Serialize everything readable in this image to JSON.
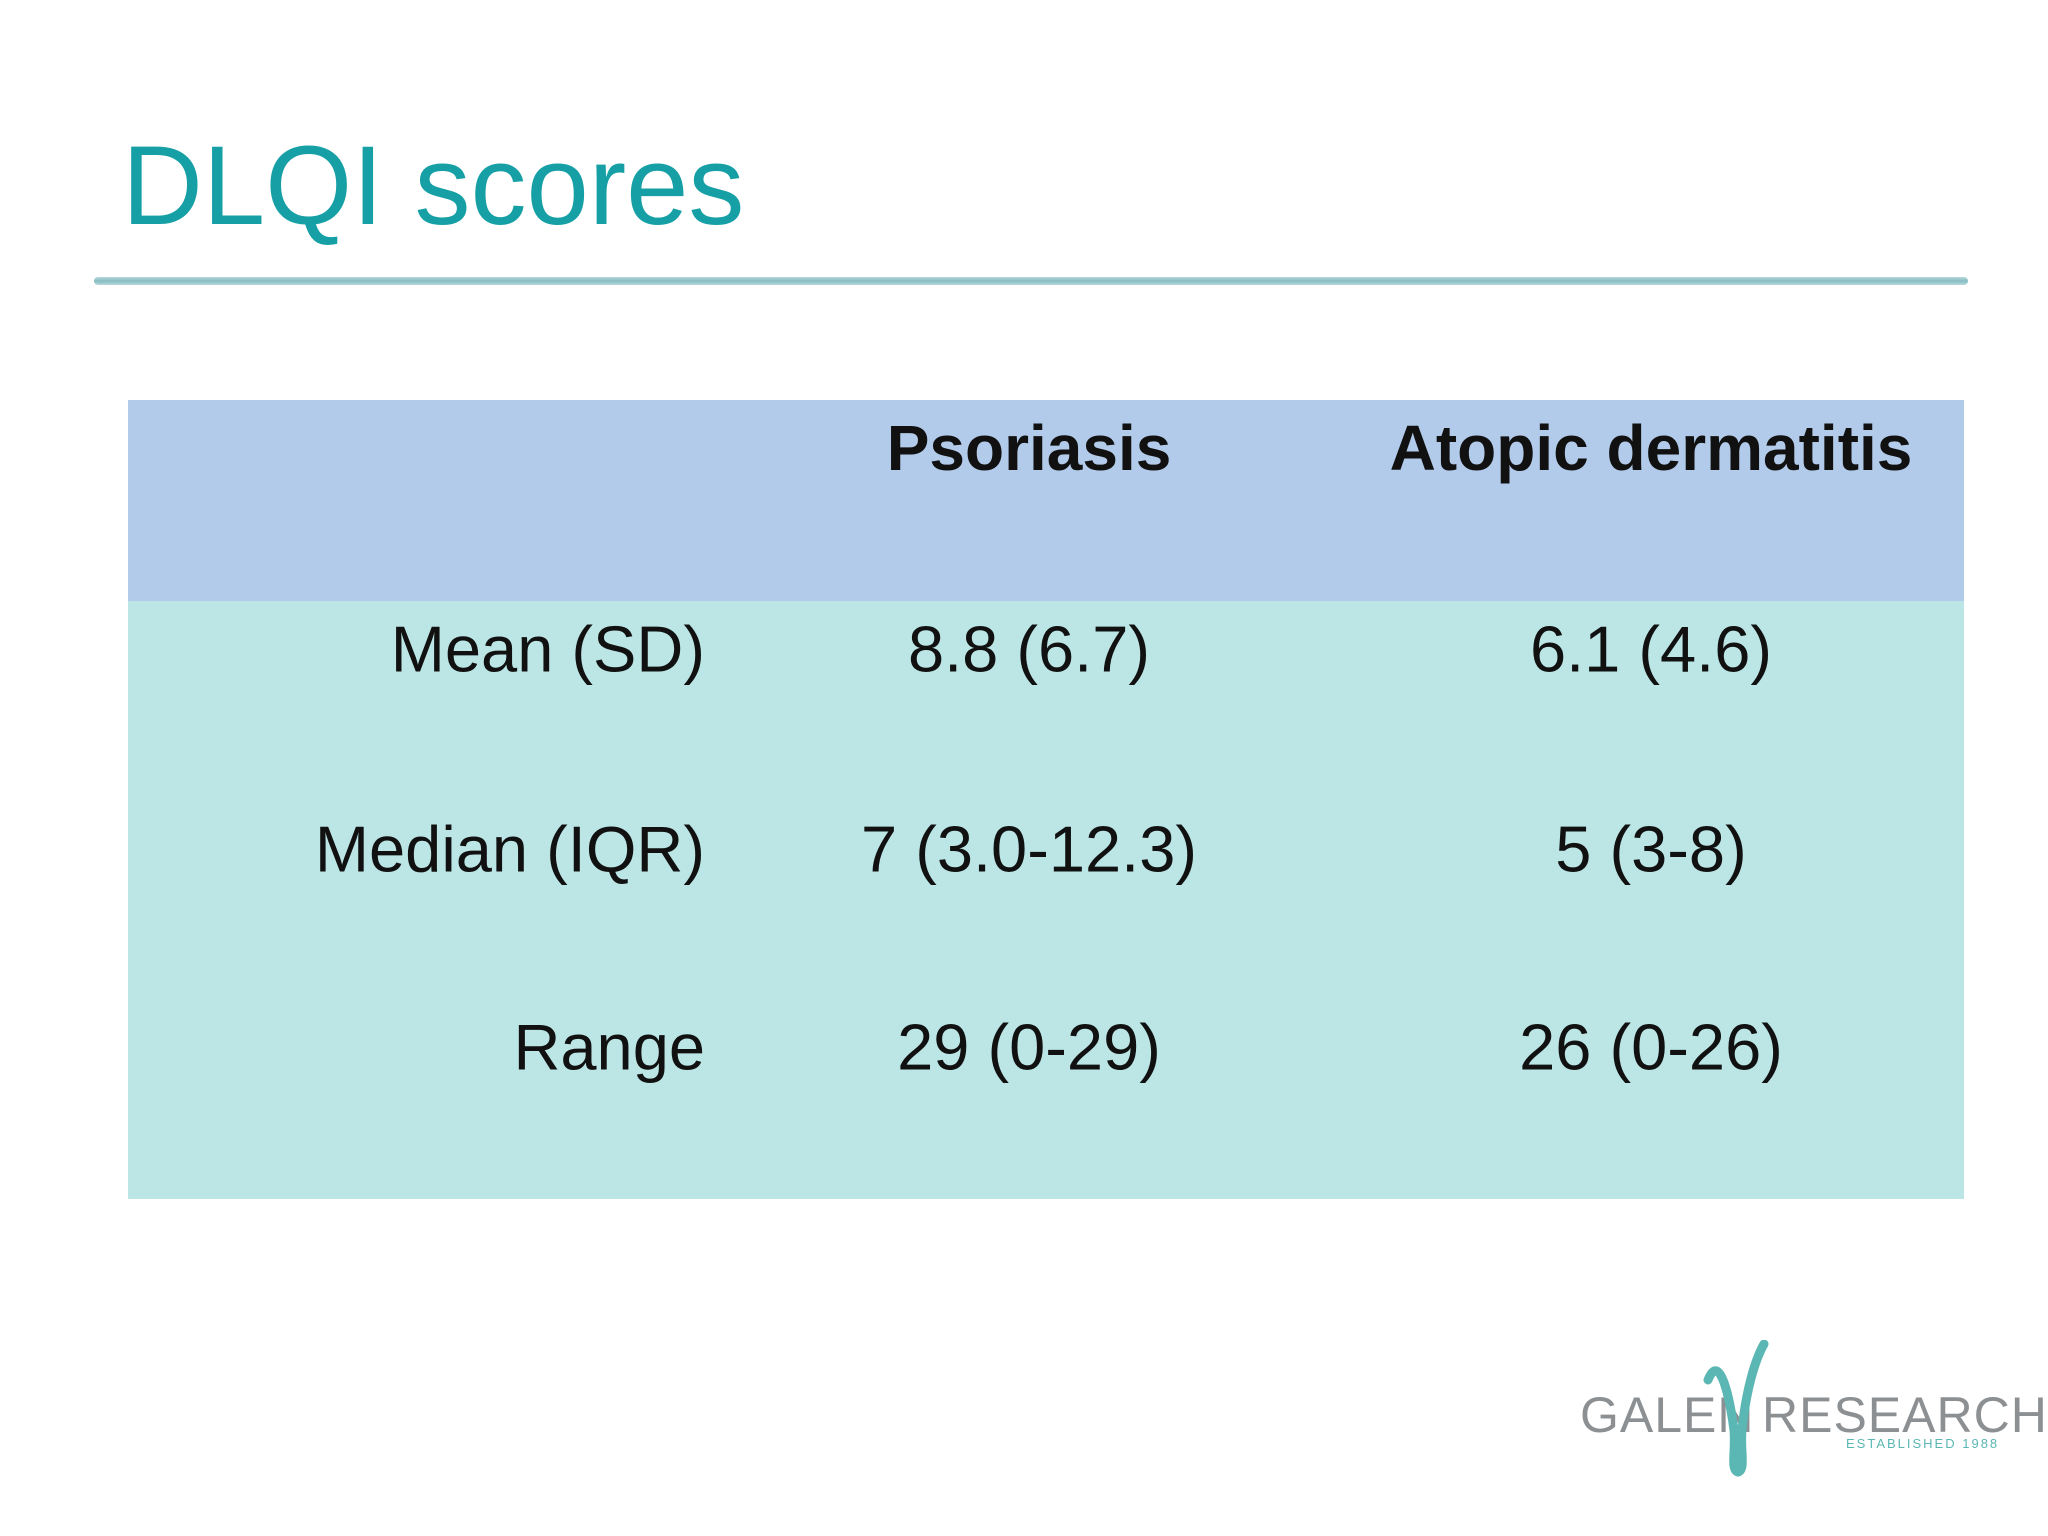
{
  "header": {
    "title": "DLQI scores"
  },
  "table": {
    "columns": [
      "",
      "Psoriasis",
      "Atopic dermatitis"
    ],
    "rows": [
      [
        "Mean (SD)",
        "8.8 (6.7)",
        "6.1 (4.6)"
      ],
      [
        "Median (IQR)",
        "7 (3.0-12.3)",
        "5 (3-8)"
      ],
      [
        "Range",
        "29 (0-29)",
        "26 (0-26)"
      ]
    ]
  },
  "logo": {
    "left": "GALEN",
    "right": "RESEARCH",
    "tagline": "ESTABLISHED 1988"
  }
}
